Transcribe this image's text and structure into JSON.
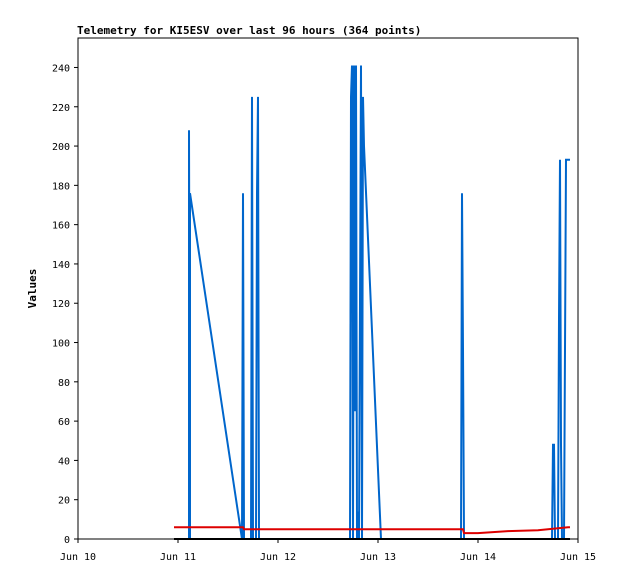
{
  "chart_data": {
    "type": "line",
    "title": "Telemetry for KI5ESV over last 96 hours (364 points)",
    "xlabel": "",
    "ylabel": "Values",
    "x_tick_labels": [
      "Jun 10",
      "Jun 11",
      "Jun 12",
      "Jun 13",
      "Jun 14",
      "Jun 15"
    ],
    "xlim": [
      0,
      5
    ],
    "ylim": [
      0,
      255
    ],
    "y_ticks": [
      0,
      20,
      40,
      60,
      80,
      100,
      120,
      140,
      160,
      180,
      200,
      220,
      240
    ],
    "grid": false,
    "series": [
      {
        "color": "#0066cc",
        "points": [
          [
            0.96,
            0
          ],
          [
            1.11,
            0
          ],
          [
            1.11,
            208
          ],
          [
            1.12,
            0
          ],
          [
            1.12,
            176
          ],
          [
            1.64,
            0
          ],
          [
            1.65,
            176
          ],
          [
            1.66,
            0
          ],
          [
            1.73,
            0
          ],
          [
            1.74,
            225
          ],
          [
            1.75,
            0
          ],
          [
            1.78,
            0
          ],
          [
            1.79,
            176
          ],
          [
            1.8,
            225
          ],
          [
            1.81,
            0
          ],
          [
            2.72,
            0
          ],
          [
            2.73,
            225
          ],
          [
            2.74,
            241
          ],
          [
            2.75,
            0
          ],
          [
            2.76,
            241
          ],
          [
            2.77,
            65
          ],
          [
            2.78,
            241
          ],
          [
            2.79,
            0
          ],
          [
            2.8,
            14
          ],
          [
            2.81,
            0
          ],
          [
            2.82,
            120
          ],
          [
            2.83,
            241
          ],
          [
            2.84,
            0
          ],
          [
            2.85,
            225
          ],
          [
            2.86,
            200
          ],
          [
            3.03,
            0
          ],
          [
            3.04,
            0
          ],
          [
            3.83,
            0
          ],
          [
            3.84,
            176
          ],
          [
            3.85,
            97
          ],
          [
            3.86,
            0
          ],
          [
            4.74,
            0
          ],
          [
            4.75,
            48
          ],
          [
            4.76,
            48
          ],
          [
            4.77,
            0
          ],
          [
            4.8,
            0
          ],
          [
            4.81,
            112
          ],
          [
            4.82,
            193
          ],
          [
            4.83,
            48
          ],
          [
            4.84,
            0
          ],
          [
            4.86,
            0
          ],
          [
            4.87,
            97
          ],
          [
            4.88,
            193
          ],
          [
            4.92,
            193
          ]
        ]
      },
      {
        "color": "#dd0000",
        "points": [
          [
            0.96,
            6
          ],
          [
            1.65,
            6
          ],
          [
            1.66,
            5
          ],
          [
            2.0,
            5
          ],
          [
            3.85,
            5
          ],
          [
            3.86,
            3
          ],
          [
            4.0,
            3
          ],
          [
            4.3,
            4
          ],
          [
            4.6,
            4.5
          ],
          [
            4.9,
            6
          ],
          [
            4.92,
            6
          ]
        ]
      },
      {
        "color": "#000000",
        "points": [
          [
            0.96,
            0
          ],
          [
            4.92,
            0
          ]
        ]
      }
    ]
  }
}
